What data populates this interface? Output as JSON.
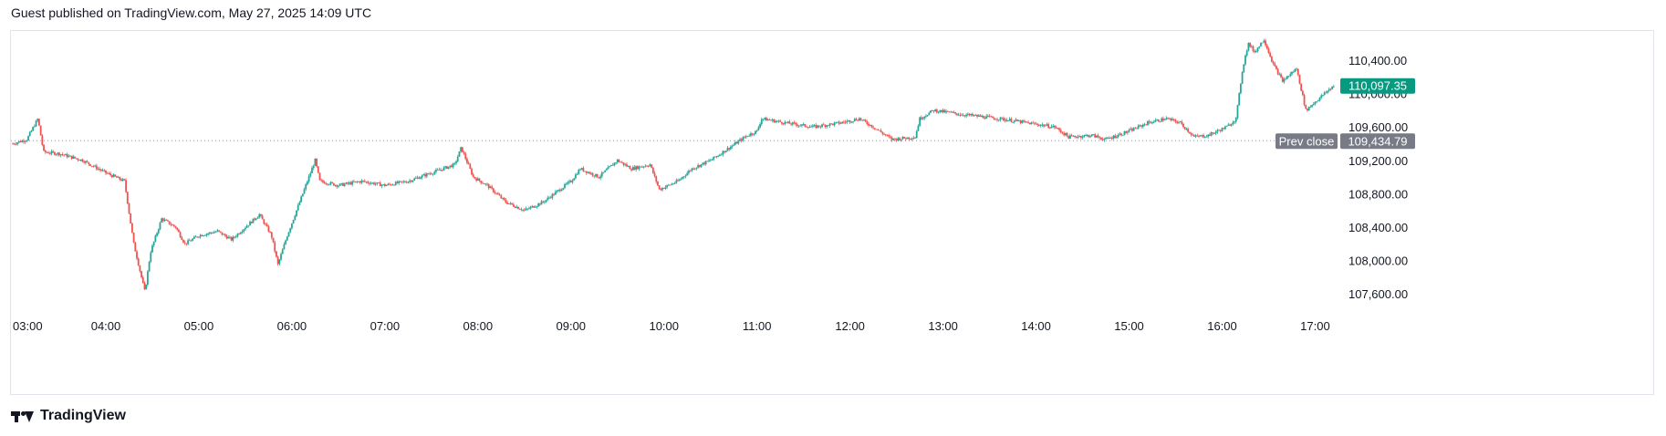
{
  "header": {
    "text": "Guest published on TradingView.com, May 27, 2025 14:09 UTC"
  },
  "footer": {
    "brand": "TradingView",
    "logo_icon": "tradingview-logo-icon"
  },
  "colors": {
    "up": "#26a69a",
    "down": "#ef5350",
    "last_price_bg": "#089981",
    "prev_close_bg": "#787b86",
    "grid_text": "#131722"
  },
  "chart_data": {
    "type": "candlestick",
    "title": "",
    "x_ticks": [
      "03:00",
      "04:00",
      "05:00",
      "06:00",
      "07:00",
      "08:00",
      "09:00",
      "10:00",
      "11:00",
      "12:00",
      "13:00",
      "14:00",
      "15:00",
      "16:00",
      "17:00"
    ],
    "y_ticks": [
      "110,400.00",
      "110,000.00",
      "109,600.00",
      "109,200.00",
      "108,800.00",
      "108,400.00",
      "108,000.00",
      "107,600.00"
    ],
    "y_tick_values": [
      110400,
      110000,
      109600,
      109200,
      108800,
      108400,
      108000,
      107600
    ],
    "ylim": [
      107350,
      110750
    ],
    "x_range_hours": [
      2.98,
      17.28
    ],
    "last_price": {
      "label": "110,097.35",
      "value": 110097.35
    },
    "prev_close": {
      "label": "Prev close",
      "value_label": "109,434.79",
      "value": 109434.79
    },
    "price_path": [
      [
        3.0,
        109400
      ],
      [
        3.15,
        109450
      ],
      [
        3.27,
        109700
      ],
      [
        3.33,
        109300
      ],
      [
        3.5,
        109280
      ],
      [
        3.75,
        109200
      ],
      [
        4.0,
        109050
      ],
      [
        4.2,
        108950
      ],
      [
        4.3,
        108200
      ],
      [
        4.42,
        107620
      ],
      [
        4.48,
        108100
      ],
      [
        4.6,
        108500
      ],
      [
        4.75,
        108400
      ],
      [
        4.85,
        108200
      ],
      [
        5.0,
        108300
      ],
      [
        5.2,
        108350
      ],
      [
        5.35,
        108250
      ],
      [
        5.55,
        108450
      ],
      [
        5.65,
        108550
      ],
      [
        5.78,
        108300
      ],
      [
        5.85,
        107950
      ],
      [
        5.95,
        108300
      ],
      [
        6.1,
        108750
      ],
      [
        6.25,
        109200
      ],
      [
        6.3,
        108950
      ],
      [
        6.5,
        108900
      ],
      [
        6.75,
        108950
      ],
      [
        7.0,
        108900
      ],
      [
        7.25,
        108950
      ],
      [
        7.5,
        109050
      ],
      [
        7.75,
        109150
      ],
      [
        7.82,
        109350
      ],
      [
        7.95,
        109000
      ],
      [
        8.1,
        108900
      ],
      [
        8.3,
        108700
      ],
      [
        8.5,
        108600
      ],
      [
        8.7,
        108700
      ],
      [
        9.0,
        108950
      ],
      [
        9.1,
        109100
      ],
      [
        9.3,
        109000
      ],
      [
        9.5,
        109200
      ],
      [
        9.65,
        109100
      ],
      [
        9.85,
        109150
      ],
      [
        9.95,
        108850
      ],
      [
        10.15,
        108950
      ],
      [
        10.3,
        109100
      ],
      [
        10.5,
        109200
      ],
      [
        10.7,
        109350
      ],
      [
        10.9,
        109500
      ],
      [
        11.0,
        109550
      ],
      [
        11.05,
        109700
      ],
      [
        11.3,
        109650
      ],
      [
        11.6,
        109600
      ],
      [
        11.9,
        109650
      ],
      [
        12.1,
        109700
      ],
      [
        12.25,
        109600
      ],
      [
        12.45,
        109450
      ],
      [
        12.7,
        109480
      ],
      [
        12.75,
        109700
      ],
      [
        12.9,
        109800
      ],
      [
        13.2,
        109750
      ],
      [
        13.6,
        109700
      ],
      [
        13.9,
        109650
      ],
      [
        14.2,
        109600
      ],
      [
        14.35,
        109480
      ],
      [
        14.6,
        109500
      ],
      [
        14.75,
        109450
      ],
      [
        15.0,
        109550
      ],
      [
        15.2,
        109650
      ],
      [
        15.4,
        109700
      ],
      [
        15.55,
        109650
      ],
      [
        15.7,
        109480
      ],
      [
        15.85,
        109500
      ],
      [
        16.05,
        109600
      ],
      [
        16.15,
        109700
      ],
      [
        16.22,
        110300
      ],
      [
        16.28,
        110600
      ],
      [
        16.35,
        110500
      ],
      [
        16.45,
        110650
      ],
      [
        16.55,
        110350
      ],
      [
        16.65,
        110150
      ],
      [
        16.8,
        110300
      ],
      [
        16.9,
        109800
      ],
      [
        17.05,
        109950
      ],
      [
        17.2,
        110097.35
      ]
    ]
  }
}
